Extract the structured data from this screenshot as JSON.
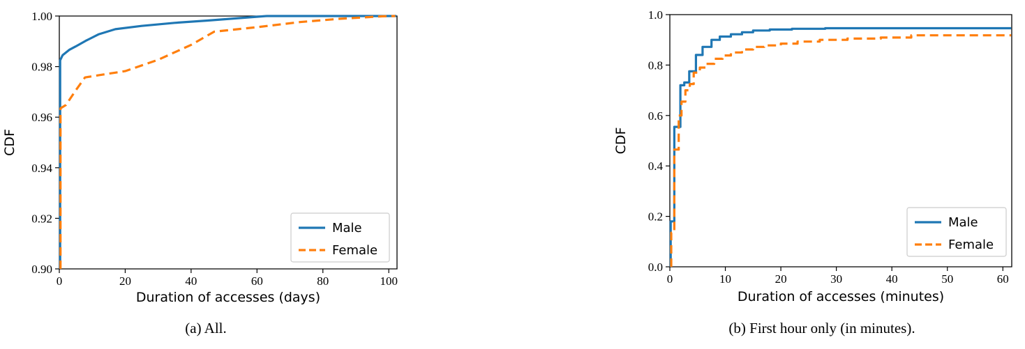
{
  "figure": {
    "background": "#ffffff",
    "caption_a": "(a) All.",
    "caption_b": "(b) First hour only (in minutes)."
  },
  "chart_data": [
    {
      "id": "a",
      "type": "line",
      "subtype": "cdf-step",
      "caption": "(a) All.",
      "xlabel": "Duration of accesses (days)",
      "ylabel": "CDF",
      "xlim": [
        0,
        102.5
      ],
      "ylim": [
        0.9,
        1.0
      ],
      "grid": false,
      "legend_position": "lower right",
      "xticks": {
        "values": [
          0,
          20,
          40,
          60,
          80,
          100
        ],
        "labels": [
          "0",
          "20",
          "40",
          "60",
          "80",
          "100"
        ]
      },
      "yticks": {
        "values": [
          0.9,
          0.92,
          0.94,
          0.96,
          0.98,
          1.0
        ],
        "labels": [
          "0.90",
          "0.92",
          "0.94",
          "0.96",
          "0.98",
          "1.00"
        ]
      },
      "series": [
        {
          "name": "Male",
          "color": "#1f77b4",
          "line_style": "solid",
          "line_width": 3.2,
          "points": [
            [
              0.25,
              0.9
            ],
            [
              0.25,
              0.9825
            ],
            [
              1,
              0.9845
            ],
            [
              3,
              0.9866
            ],
            [
              5,
              0.988
            ],
            [
              8,
              0.9902
            ],
            [
              12,
              0.9928
            ],
            [
              17,
              0.9948
            ],
            [
              25,
              0.9961
            ],
            [
              35,
              0.9973
            ],
            [
              45,
              0.9982
            ],
            [
              55,
              0.9992
            ],
            [
              63,
              1.0
            ],
            [
              102.3,
              1.0
            ]
          ]
        },
        {
          "name": "Female",
          "color": "#ff7f0e",
          "line_style": "dashed",
          "line_width": 3.2,
          "points": [
            [
              0.35,
              0.9
            ],
            [
              0.35,
              0.9635
            ],
            [
              2,
              0.9648
            ],
            [
              5,
              0.9706
            ],
            [
              7.8,
              0.9757
            ],
            [
              12,
              0.9766
            ],
            [
              20,
              0.9782
            ],
            [
              30,
              0.9827
            ],
            [
              40,
              0.9886
            ],
            [
              47,
              0.9938
            ],
            [
              60,
              0.9956
            ],
            [
              73,
              0.9976
            ],
            [
              85,
              0.9989
            ],
            [
              98,
              0.9999
            ],
            [
              102,
              1.0
            ]
          ]
        }
      ]
    },
    {
      "id": "b",
      "type": "line",
      "subtype": "cdf-step",
      "caption": "(b) First hour only (in minutes).",
      "xlabel": "Duration of accesses (minutes)",
      "ylabel": "CDF",
      "xlim": [
        0,
        61.6
      ],
      "ylim": [
        0.0,
        1.0
      ],
      "grid": false,
      "legend_position": "lower right",
      "xticks": {
        "values": [
          0,
          10,
          20,
          30,
          40,
          50,
          60
        ],
        "labels": [
          "0",
          "10",
          "20",
          "30",
          "40",
          "50",
          "60"
        ]
      },
      "yticks": {
        "values": [
          0.0,
          0.2,
          0.4,
          0.6,
          0.8,
          1.0
        ],
        "labels": [
          "0.0",
          "0.2",
          "0.4",
          "0.6",
          "0.8",
          "1.0"
        ]
      },
      "series": [
        {
          "name": "Male",
          "color": "#1f77b4",
          "line_style": "solid",
          "line_width": 3.2,
          "points": [
            [
              0.15,
              0
            ],
            [
              0.15,
              0.18
            ],
            [
              0.8,
              0.18
            ],
            [
              0.8,
              0.555
            ],
            [
              1.9,
              0.555
            ],
            [
              1.9,
              0.72
            ],
            [
              2.6,
              0.72
            ],
            [
              2.6,
              0.731
            ],
            [
              3.5,
              0.731
            ],
            [
              3.5,
              0.775
            ],
            [
              4.7,
              0.775
            ],
            [
              4.7,
              0.84
            ],
            [
              5.9,
              0.84
            ],
            [
              5.9,
              0.872
            ],
            [
              7.5,
              0.872
            ],
            [
              7.5,
              0.9
            ],
            [
              9,
              0.9
            ],
            [
              9,
              0.913
            ],
            [
              11,
              0.913
            ],
            [
              11,
              0.922
            ],
            [
              13,
              0.922
            ],
            [
              13,
              0.93
            ],
            [
              15,
              0.93
            ],
            [
              15,
              0.937
            ],
            [
              18,
              0.937
            ],
            [
              18,
              0.941
            ],
            [
              22,
              0.941
            ],
            [
              22,
              0.944
            ],
            [
              28,
              0.944
            ],
            [
              28,
              0.946
            ],
            [
              61.5,
              0.946
            ]
          ]
        },
        {
          "name": "Female",
          "color": "#ff7f0e",
          "line_style": "dashed",
          "line_width": 3.2,
          "points": [
            [
              0.25,
              0
            ],
            [
              0.25,
              0.135
            ],
            [
              0.8,
              0.135
            ],
            [
              0.8,
              0.465
            ],
            [
              1.6,
              0.465
            ],
            [
              1.6,
              0.6
            ],
            [
              2.1,
              0.6
            ],
            [
              2.1,
              0.655
            ],
            [
              2.8,
              0.655
            ],
            [
              2.8,
              0.7
            ],
            [
              3.6,
              0.7
            ],
            [
              3.6,
              0.725
            ],
            [
              4.3,
              0.725
            ],
            [
              4.3,
              0.77
            ],
            [
              5.4,
              0.77
            ],
            [
              5.4,
              0.79
            ],
            [
              6.5,
              0.79
            ],
            [
              6.5,
              0.805
            ],
            [
              8,
              0.805
            ],
            [
              8,
              0.825
            ],
            [
              9.5,
              0.825
            ],
            [
              9.5,
              0.838
            ],
            [
              11,
              0.838
            ],
            [
              11,
              0.85
            ],
            [
              13,
              0.85
            ],
            [
              13,
              0.862
            ],
            [
              15,
              0.862
            ],
            [
              15,
              0.872
            ],
            [
              17,
              0.872
            ],
            [
              17,
              0.878
            ],
            [
              20,
              0.878
            ],
            [
              20,
              0.885
            ],
            [
              23,
              0.885
            ],
            [
              23,
              0.893
            ],
            [
              27,
              0.893
            ],
            [
              27,
              0.9
            ],
            [
              32,
              0.9
            ],
            [
              32,
              0.905
            ],
            [
              38,
              0.905
            ],
            [
              38,
              0.909
            ],
            [
              43.5,
              0.909
            ],
            [
              43.5,
              0.918
            ],
            [
              61.5,
              0.918
            ]
          ]
        }
      ]
    }
  ]
}
